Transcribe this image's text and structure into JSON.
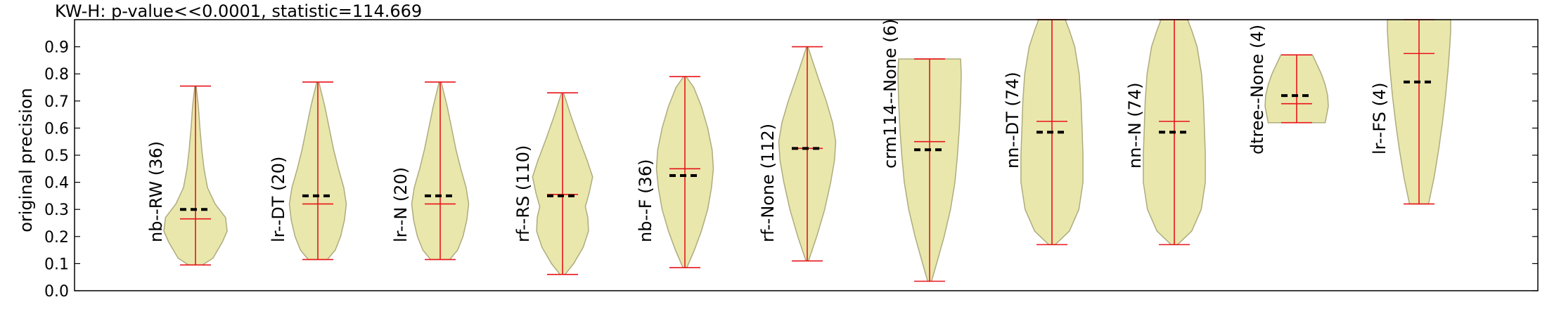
{
  "chart_data": {
    "type": "violin",
    "title": "KW-H: p-value<<0.0001, statistic=114.669",
    "xlabel": "",
    "ylabel": "original precision",
    "ylim": [
      0.0,
      1.0
    ],
    "yticks": [
      0.0,
      0.1,
      0.2,
      0.3,
      0.4,
      0.5,
      0.6,
      0.7,
      0.8,
      0.9
    ],
    "series": [
      {
        "label": "nb--RW (36)",
        "min": 0.095,
        "max": 0.755,
        "mean": 0.265,
        "median": 0.3,
        "profile": [
          [
            0.095,
            0.22
          ],
          [
            0.12,
            0.55
          ],
          [
            0.18,
            0.85
          ],
          [
            0.22,
            1.0
          ],
          [
            0.27,
            0.95
          ],
          [
            0.32,
            0.62
          ],
          [
            0.38,
            0.38
          ],
          [
            0.45,
            0.27
          ],
          [
            0.52,
            0.2
          ],
          [
            0.6,
            0.14
          ],
          [
            0.68,
            0.09
          ],
          [
            0.755,
            0.02
          ]
        ]
      },
      {
        "label": "lr--DT (20)",
        "min": 0.115,
        "max": 0.77,
        "mean": 0.32,
        "median": 0.35,
        "profile": [
          [
            0.115,
            0.3
          ],
          [
            0.15,
            0.55
          ],
          [
            0.2,
            0.72
          ],
          [
            0.26,
            0.84
          ],
          [
            0.32,
            0.9
          ],
          [
            0.38,
            0.82
          ],
          [
            0.45,
            0.65
          ],
          [
            0.52,
            0.5
          ],
          [
            0.6,
            0.36
          ],
          [
            0.68,
            0.22
          ],
          [
            0.77,
            0.03
          ]
        ]
      },
      {
        "label": "lr--N (20)",
        "min": 0.115,
        "max": 0.77,
        "mean": 0.32,
        "median": 0.35,
        "profile": [
          [
            0.115,
            0.3
          ],
          [
            0.15,
            0.55
          ],
          [
            0.2,
            0.72
          ],
          [
            0.26,
            0.84
          ],
          [
            0.32,
            0.9
          ],
          [
            0.38,
            0.82
          ],
          [
            0.45,
            0.65
          ],
          [
            0.52,
            0.5
          ],
          [
            0.6,
            0.36
          ],
          [
            0.68,
            0.22
          ],
          [
            0.77,
            0.03
          ]
        ]
      },
      {
        "label": "rf--RS (110)",
        "min": 0.06,
        "max": 0.73,
        "mean": 0.355,
        "median": 0.35,
        "profile": [
          [
            0.06,
            0.08
          ],
          [
            0.1,
            0.35
          ],
          [
            0.16,
            0.65
          ],
          [
            0.22,
            0.82
          ],
          [
            0.27,
            0.8
          ],
          [
            0.31,
            0.72
          ],
          [
            0.36,
            0.84
          ],
          [
            0.42,
            0.95
          ],
          [
            0.48,
            0.78
          ],
          [
            0.56,
            0.52
          ],
          [
            0.64,
            0.28
          ],
          [
            0.73,
            0.03
          ]
        ]
      },
      {
        "label": "nb--F (36)",
        "min": 0.085,
        "max": 0.79,
        "mean": 0.45,
        "median": 0.425,
        "profile": [
          [
            0.085,
            0.06
          ],
          [
            0.15,
            0.3
          ],
          [
            0.22,
            0.52
          ],
          [
            0.3,
            0.72
          ],
          [
            0.38,
            0.84
          ],
          [
            0.45,
            0.9
          ],
          [
            0.52,
            0.86
          ],
          [
            0.6,
            0.72
          ],
          [
            0.68,
            0.52
          ],
          [
            0.75,
            0.28
          ],
          [
            0.79,
            0.04
          ]
        ]
      },
      {
        "label": "rf--None (112)",
        "min": 0.11,
        "max": 0.9,
        "mean": 0.525,
        "median": 0.525,
        "profile": [
          [
            0.11,
            0.04
          ],
          [
            0.2,
            0.3
          ],
          [
            0.3,
            0.55
          ],
          [
            0.4,
            0.74
          ],
          [
            0.48,
            0.86
          ],
          [
            0.55,
            0.9
          ],
          [
            0.62,
            0.8
          ],
          [
            0.7,
            0.6
          ],
          [
            0.78,
            0.36
          ],
          [
            0.85,
            0.16
          ],
          [
            0.9,
            0.02
          ]
        ]
      },
      {
        "label": "crm114--None (6)",
        "min": 0.035,
        "max": 0.855,
        "mean": 0.55,
        "median": 0.52,
        "profile": [
          [
            0.035,
            0.06
          ],
          [
            0.1,
            0.22
          ],
          [
            0.2,
            0.46
          ],
          [
            0.3,
            0.66
          ],
          [
            0.4,
            0.8
          ],
          [
            0.5,
            0.88
          ],
          [
            0.6,
            0.94
          ],
          [
            0.7,
            0.98
          ],
          [
            0.8,
            1.0
          ],
          [
            0.855,
            0.98
          ]
        ]
      },
      {
        "label": "nn--DT (74)",
        "min": 0.17,
        "max": 1.0,
        "mean": 0.625,
        "median": 0.585,
        "profile": [
          [
            0.17,
            0.1
          ],
          [
            0.22,
            0.55
          ],
          [
            0.3,
            0.85
          ],
          [
            0.4,
            0.98
          ],
          [
            0.5,
            0.98
          ],
          [
            0.6,
            0.95
          ],
          [
            0.7,
            0.92
          ],
          [
            0.8,
            0.86
          ],
          [
            0.9,
            0.72
          ],
          [
            0.96,
            0.55
          ],
          [
            1.0,
            0.42
          ]
        ]
      },
      {
        "label": "nn--N (74)",
        "min": 0.17,
        "max": 1.0,
        "mean": 0.625,
        "median": 0.585,
        "profile": [
          [
            0.17,
            0.1
          ],
          [
            0.22,
            0.55
          ],
          [
            0.3,
            0.85
          ],
          [
            0.4,
            0.98
          ],
          [
            0.5,
            0.98
          ],
          [
            0.6,
            0.95
          ],
          [
            0.7,
            0.92
          ],
          [
            0.8,
            0.86
          ],
          [
            0.9,
            0.72
          ],
          [
            0.96,
            0.55
          ],
          [
            1.0,
            0.42
          ]
        ]
      },
      {
        "label": "dtree--None (4)",
        "min": 0.62,
        "max": 0.87,
        "mean": 0.69,
        "median": 0.72,
        "profile": [
          [
            0.62,
            0.9
          ],
          [
            0.65,
            0.95
          ],
          [
            0.68,
            1.0
          ],
          [
            0.72,
            0.98
          ],
          [
            0.76,
            0.9
          ],
          [
            0.8,
            0.78
          ],
          [
            0.84,
            0.62
          ],
          [
            0.87,
            0.5
          ]
        ]
      },
      {
        "label": "lr--FS (4)",
        "min": 0.32,
        "max": 1.0,
        "mean": 0.875,
        "median": 0.77,
        "profile": [
          [
            0.32,
            0.3
          ],
          [
            0.42,
            0.48
          ],
          [
            0.52,
            0.62
          ],
          [
            0.62,
            0.74
          ],
          [
            0.72,
            0.84
          ],
          [
            0.82,
            0.92
          ],
          [
            0.9,
            0.97
          ],
          [
            0.96,
            1.0
          ],
          [
            1.0,
            1.0
          ]
        ]
      }
    ]
  }
}
